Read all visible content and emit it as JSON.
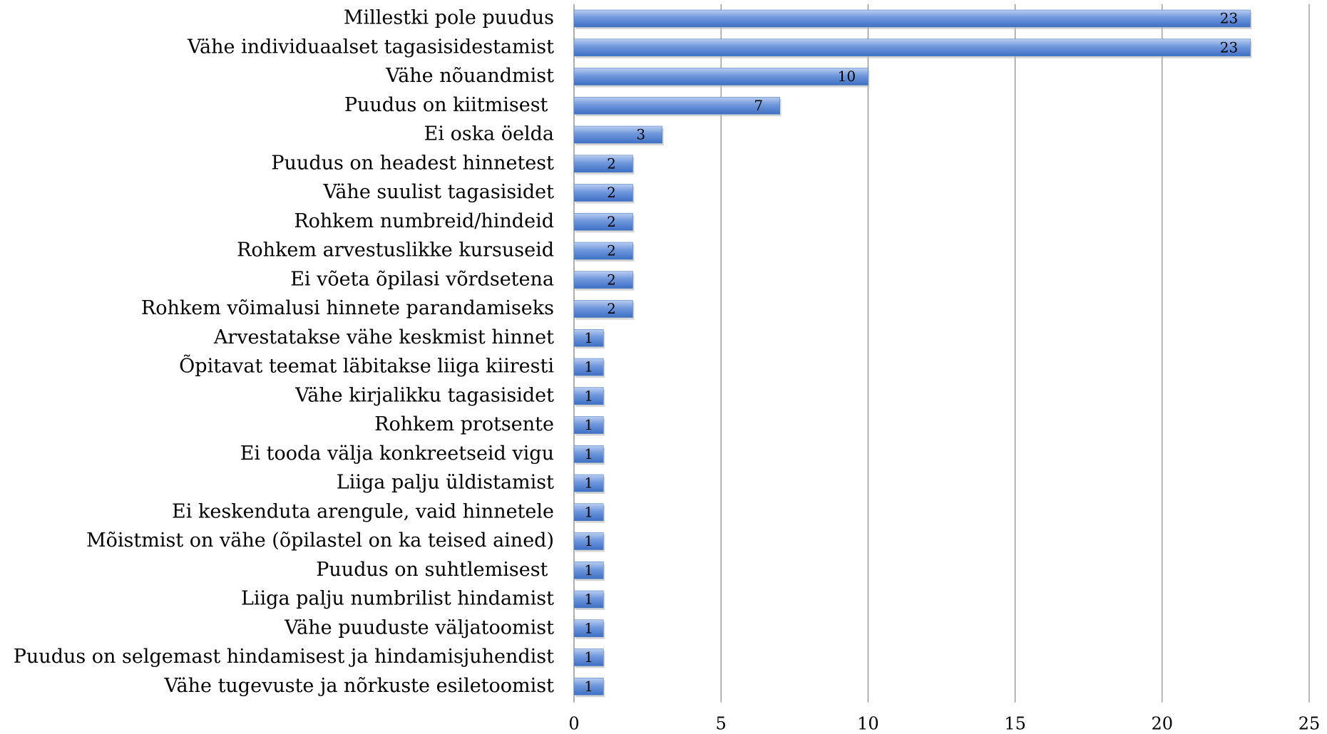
{
  "chart_data": {
    "type": "bar",
    "orientation": "horizontal",
    "categories": [
      "Millestki pole puudus",
      "Vähe individuaalset tagasisidestamist",
      "Vähe nõuandmist",
      "Puudus on kiitmisest ",
      "Ei oska öelda",
      "Puudus on headest hinnetest",
      "Vähe suulist tagasisidet",
      "Rohkem numbreid/hindeid",
      "Rohkem arvestuslikke kursuseid",
      "Ei võeta õpilasi võrdsetena",
      "Rohkem võimalusi hinnete parandamiseks",
      "Arvestatakse vähe keskmist hinnet",
      "Õpitavat teemat läbitakse liiga kiiresti",
      "Vähe kirjalikku tagasisidet",
      "Rohkem protsente",
      "Ei tooda välja konkreetseid vigu",
      "Liiga palju üldistamist",
      "Ei keskenduta arengule, vaid hinnetele",
      "Mõistmist on vähe (õpilastel on ka teised ained)",
      "Puudus on suhtlemisest ",
      "Liiga palju numbrilist hindamist",
      "Vähe puuduste väljatoomist",
      "Puudus on selgemast hindamisest ja hindamisjuhendist",
      "Vähe tugevuste ja nõrkuste esiletoomist"
    ],
    "values": [
      23,
      23,
      10,
      7,
      3,
      2,
      2,
      2,
      2,
      2,
      2,
      1,
      1,
      1,
      1,
      1,
      1,
      1,
      1,
      1,
      1,
      1,
      1,
      1
    ],
    "color": "#4f81bd",
    "xlim": [
      0,
      25
    ],
    "xticks": [
      0,
      5,
      10,
      15,
      20,
      25
    ],
    "grid": true
  }
}
